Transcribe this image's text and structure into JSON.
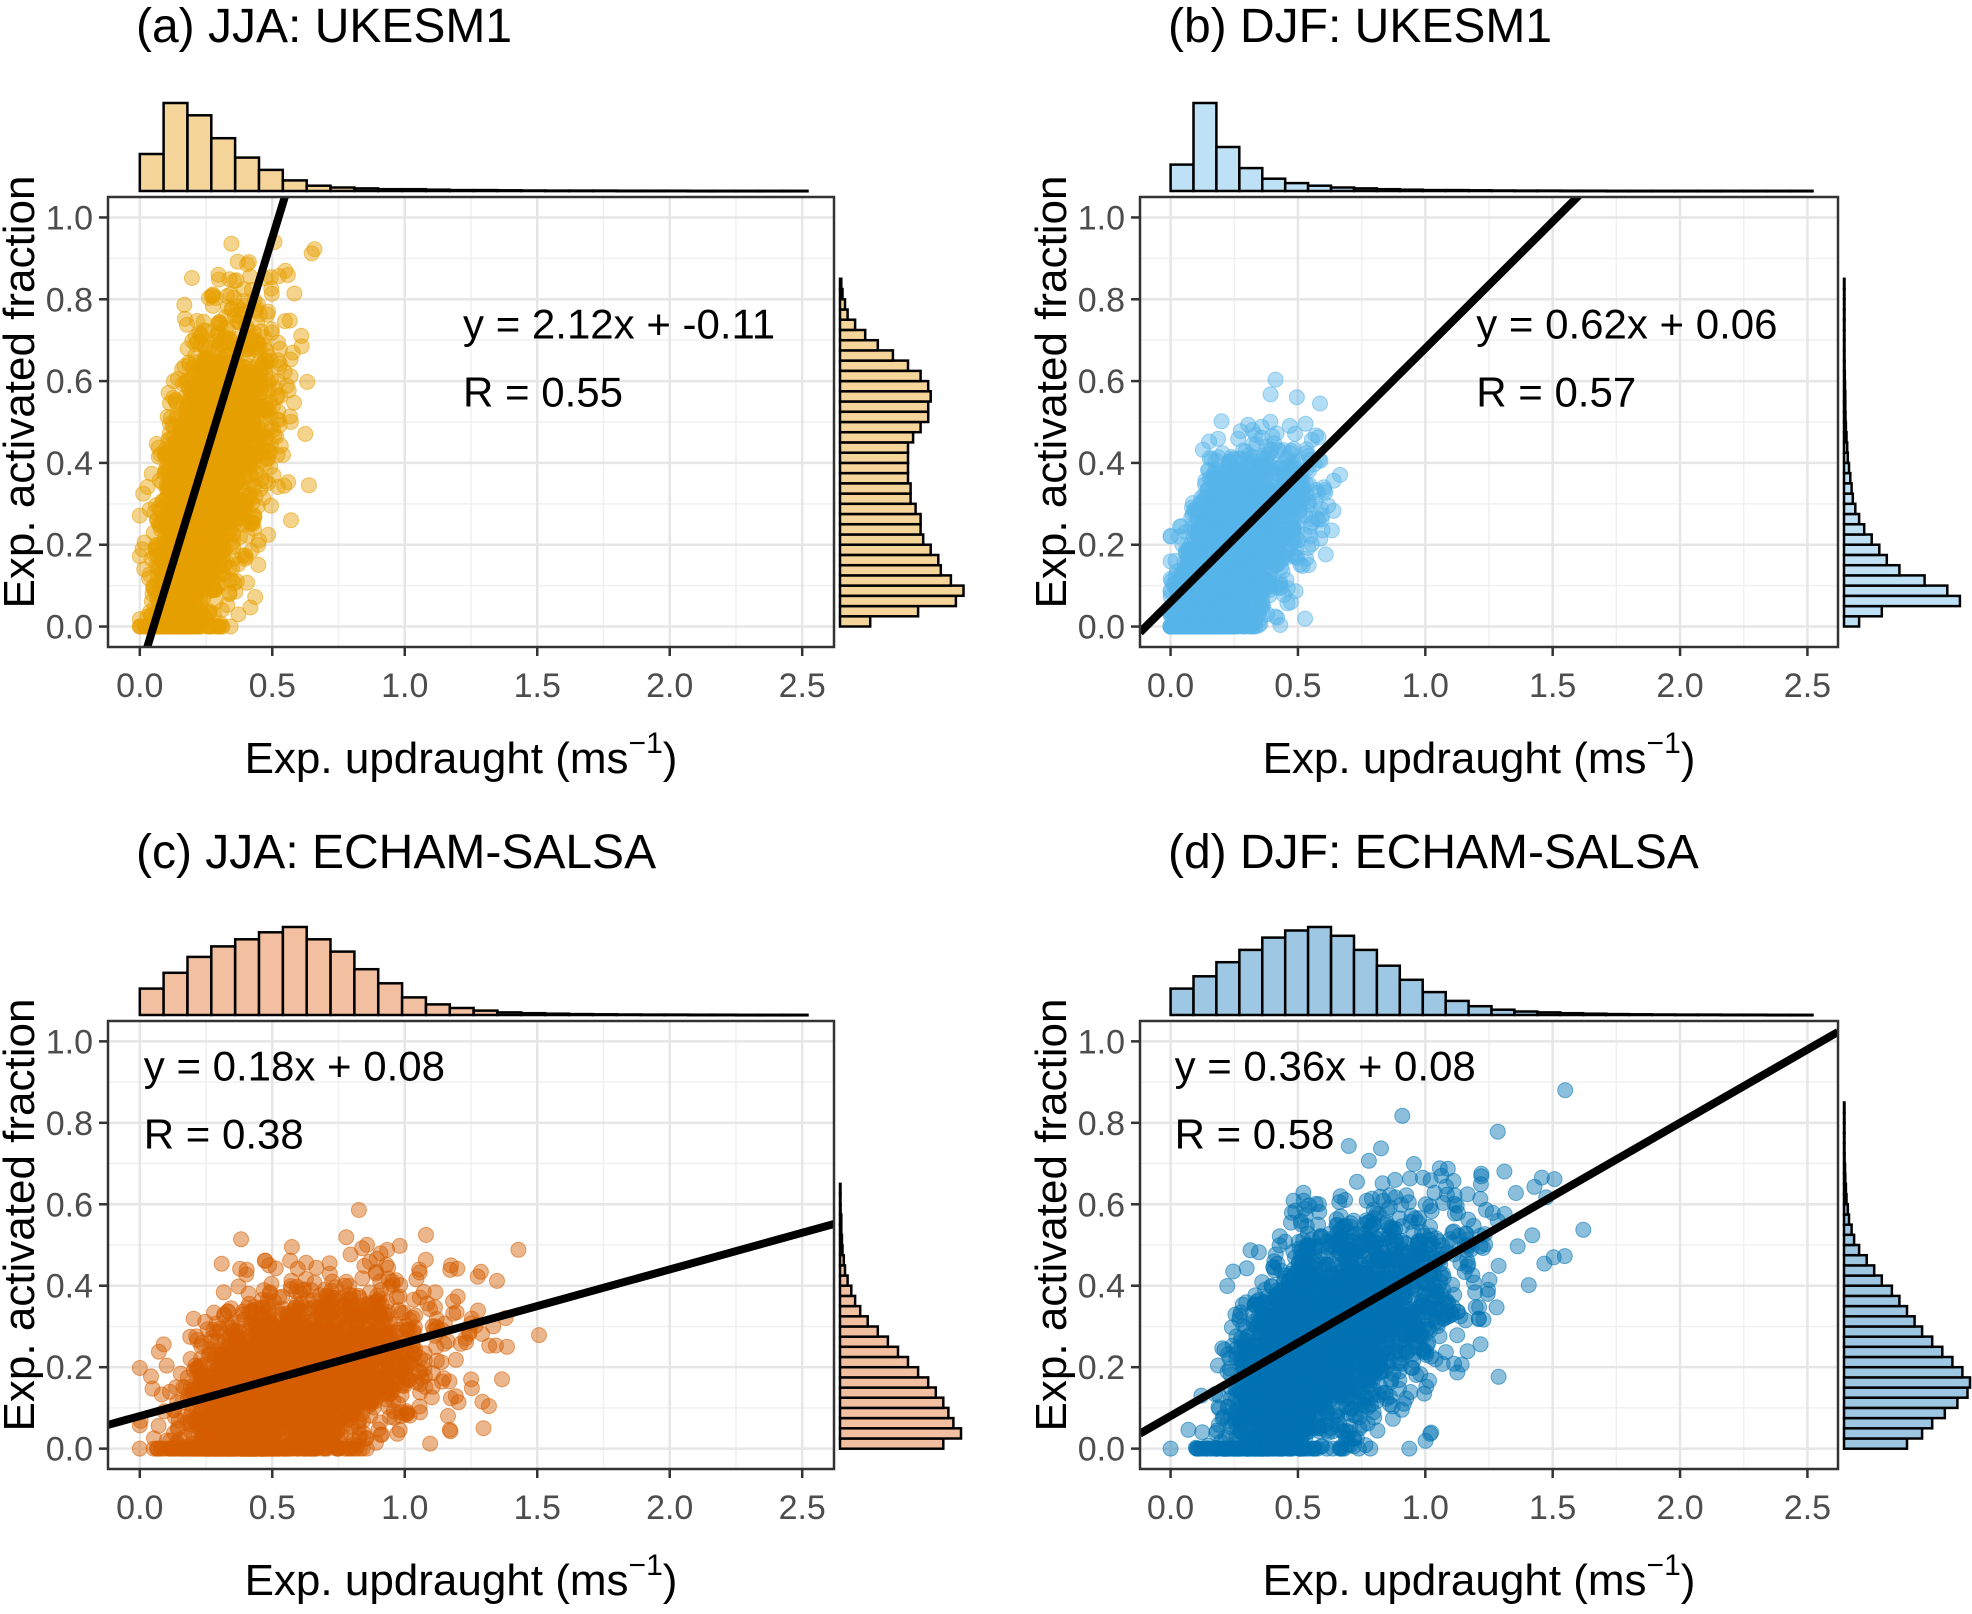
{
  "chart_data": [
    {
      "type": "scatter",
      "title": "(a) JJA: UKESM1",
      "xlabel": "Exp. updraught (ms",
      "xlabel_sup": "−1",
      "xlabel_close": ")",
      "ylabel": "Exp. activated fraction",
      "xlim": [
        -0.12,
        2.62
      ],
      "ylim": [
        -0.05,
        1.05
      ],
      "x_ticks": [
        0.0,
        0.5,
        1.0,
        1.5,
        2.0,
        2.5
      ],
      "x_tick_labels": [
        "0.0",
        "0.5",
        "1.0",
        "1.5",
        "2.0",
        "2.5"
      ],
      "y_ticks": [
        0.0,
        0.2,
        0.4,
        0.6,
        0.8,
        1.0
      ],
      "y_tick_labels": [
        "0.0",
        "0.2",
        "0.4",
        "0.6",
        "0.8",
        "1.0"
      ],
      "grid": true,
      "point_color": "#E69F00",
      "hist_color": "#F5D59A",
      "fit": {
        "slope": 2.12,
        "intercept": -0.11
      },
      "annotation_lines": [
        "y = 2.12x + -0.11",
        "R = 0.55"
      ],
      "annotation_pos": [
        1.22,
        0.675
      ],
      "points": {
        "center": [
          0.22,
          0.34
        ],
        "spread": [
          0.14,
          0.2
        ],
        "corr": 0.55,
        "xrange": [
          0.0,
          1.36
        ],
        "yrange": [
          0.0,
          0.94
        ],
        "n": 2600
      },
      "top_hist": {
        "bin_width": 0.09,
        "start": 0.0,
        "counts": [
          0.42,
          1.0,
          0.86,
          0.6,
          0.38,
          0.24,
          0.12,
          0.06,
          0.04,
          0.03,
          0.02,
          0.02,
          0.015,
          0.01,
          0.01,
          0.008,
          0.006,
          0.005,
          0.004,
          0.004,
          0.003,
          0.003,
          0.003,
          0.002,
          0.002,
          0.002,
          0.002,
          0.002
        ]
      },
      "right_hist": {
        "bin_width": 0.025,
        "start": 0.0,
        "counts": [
          0.24,
          0.62,
          0.92,
          0.98,
          0.88,
          0.8,
          0.78,
          0.72,
          0.66,
          0.64,
          0.64,
          0.6,
          0.56,
          0.56,
          0.54,
          0.54,
          0.54,
          0.54,
          0.58,
          0.64,
          0.7,
          0.7,
          0.72,
          0.7,
          0.64,
          0.54,
          0.42,
          0.3,
          0.2,
          0.12,
          0.06,
          0.04,
          0.02,
          0.01
        ]
      }
    },
    {
      "type": "scatter",
      "title": "(b) DJF: UKESM1",
      "xlabel": "Exp. updraught (ms",
      "xlabel_sup": "−1",
      "xlabel_close": ")",
      "ylabel": "Exp. activated fraction",
      "xlim": [
        -0.12,
        2.62
      ],
      "ylim": [
        -0.05,
        1.05
      ],
      "x_ticks": [
        0.0,
        0.5,
        1.0,
        1.5,
        2.0,
        2.5
      ],
      "x_tick_labels": [
        "0.0",
        "0.5",
        "1.0",
        "1.5",
        "2.0",
        "2.5"
      ],
      "y_ticks": [
        0.0,
        0.2,
        0.4,
        0.6,
        0.8,
        1.0
      ],
      "y_tick_labels": [
        "0.0",
        "0.2",
        "0.4",
        "0.6",
        "0.8",
        "1.0"
      ],
      "grid": true,
      "point_color": "#56B4E9",
      "hist_color": "#BFE1F6",
      "fit": {
        "slope": 0.62,
        "intercept": 0.06
      },
      "annotation_lines": [
        "y = 0.62x + 0.06",
        "R = 0.57"
      ],
      "annotation_pos": [
        1.2,
        0.675
      ],
      "points": {
        "center": [
          0.2,
          0.16
        ],
        "spread": [
          0.16,
          0.13
        ],
        "corr": 0.57,
        "xrange": [
          0.0,
          1.2
        ],
        "yrange": [
          0.0,
          0.85
        ],
        "n": 2400
      },
      "top_hist": {
        "bin_width": 0.09,
        "start": 0.0,
        "counts": [
          0.3,
          1.0,
          0.5,
          0.26,
          0.14,
          0.09,
          0.06,
          0.04,
          0.03,
          0.02,
          0.015,
          0.01,
          0.01,
          0.008,
          0.006,
          0.005,
          0.004,
          0.003,
          0.003,
          0.002,
          0.002,
          0.002,
          0.002,
          0.002,
          0.002,
          0.002,
          0.002,
          0.002
        ]
      },
      "right_hist": {
        "bin_width": 0.025,
        "start": 0.0,
        "counts": [
          0.12,
          0.3,
          0.92,
          0.82,
          0.64,
          0.44,
          0.34,
          0.28,
          0.22,
          0.16,
          0.12,
          0.09,
          0.07,
          0.06,
          0.05,
          0.04,
          0.03,
          0.025,
          0.02,
          0.015,
          0.012,
          0.01,
          0.01,
          0.008,
          0.006,
          0.005,
          0.004,
          0.003,
          0.002,
          0.002,
          0.002,
          0.001,
          0.001,
          0.001
        ]
      }
    },
    {
      "type": "scatter",
      "title": "(c) JJA: ECHAM-SALSA",
      "xlabel": "Exp. updraught (ms",
      "xlabel_sup": "−1",
      "xlabel_close": ")",
      "ylabel": "Exp. activated fraction",
      "xlim": [
        -0.12,
        2.62
      ],
      "ylim": [
        -0.05,
        1.05
      ],
      "x_ticks": [
        0.0,
        0.5,
        1.0,
        1.5,
        2.0,
        2.5
      ],
      "x_tick_labels": [
        "0.0",
        "0.5",
        "1.0",
        "1.5",
        "2.0",
        "2.5"
      ],
      "y_ticks": [
        0.0,
        0.2,
        0.4,
        0.6,
        0.8,
        1.0
      ],
      "y_tick_labels": [
        "0.0",
        "0.2",
        "0.4",
        "0.6",
        "0.8",
        "1.0"
      ],
      "grid": true,
      "point_color": "#D55E00",
      "hist_color": "#F2C0A0",
      "fit": {
        "slope": 0.18,
        "intercept": 0.08
      },
      "annotation_lines": [
        "y = 0.18x + 0.08",
        "R = 0.38"
      ],
      "annotation_pos": [
        0.0,
        0.875
      ],
      "points": {
        "center": [
          0.5,
          0.15
        ],
        "spread": [
          0.3,
          0.12
        ],
        "corr": 0.38,
        "xrange": [
          0.0,
          2.48
        ],
        "yrange": [
          0.0,
          0.62
        ],
        "n": 2800
      },
      "top_hist": {
        "bin_width": 0.09,
        "start": 0.0,
        "counts": [
          0.3,
          0.48,
          0.66,
          0.78,
          0.86,
          0.94,
          1.0,
          0.86,
          0.72,
          0.52,
          0.36,
          0.2,
          0.12,
          0.08,
          0.05,
          0.03,
          0.02,
          0.015,
          0.01,
          0.008,
          0.006,
          0.005,
          0.004,
          0.003,
          0.003,
          0.002,
          0.002,
          0.002
        ]
      },
      "right_hist": {
        "bin_width": 0.025,
        "start": 0.0,
        "counts": [
          0.82,
          0.96,
          0.9,
          0.86,
          0.82,
          0.76,
          0.7,
          0.62,
          0.54,
          0.46,
          0.38,
          0.3,
          0.22,
          0.16,
          0.12,
          0.09,
          0.06,
          0.04,
          0.03,
          0.02,
          0.015,
          0.01,
          0.01,
          0.005,
          0.003,
          0.002
        ]
      }
    },
    {
      "type": "scatter",
      "title": "(d) DJF: ECHAM-SALSA",
      "xlabel": "Exp. updraught (ms",
      "xlabel_sup": "−1",
      "xlabel_close": ")",
      "ylabel": "Exp. activated fraction",
      "xlim": [
        -0.12,
        2.62
      ],
      "ylim": [
        -0.05,
        1.05
      ],
      "x_ticks": [
        0.0,
        0.5,
        1.0,
        1.5,
        2.0,
        2.5
      ],
      "x_tick_labels": [
        "0.0",
        "0.5",
        "1.0",
        "1.5",
        "2.0",
        "2.5"
      ],
      "y_ticks": [
        0.0,
        0.2,
        0.4,
        0.6,
        0.8,
        1.0
      ],
      "y_tick_labels": [
        "0.0",
        "0.2",
        "0.4",
        "0.6",
        "0.8",
        "1.0"
      ],
      "grid": true,
      "point_color": "#0072B2",
      "hist_color": "#9DC7E2",
      "fit": {
        "slope": 0.36,
        "intercept": 0.08
      },
      "annotation_lines": [
        "y = 0.36x + 0.08",
        "R = 0.58"
      ],
      "annotation_pos": [
        0.0,
        0.875
      ],
      "points": {
        "center": [
          0.55,
          0.26
        ],
        "spread": [
          0.3,
          0.16
        ],
        "corr": 0.58,
        "xrange": [
          0.0,
          2.05
        ],
        "yrange": [
          0.0,
          0.88
        ],
        "n": 2800
      },
      "top_hist": {
        "bin_width": 0.09,
        "start": 0.0,
        "counts": [
          0.3,
          0.44,
          0.6,
          0.74,
          0.88,
          0.96,
          1.0,
          0.9,
          0.74,
          0.56,
          0.4,
          0.26,
          0.16,
          0.1,
          0.06,
          0.04,
          0.03,
          0.02,
          0.015,
          0.01,
          0.008,
          0.006,
          0.005,
          0.004,
          0.003,
          0.003,
          0.002,
          0.002
        ]
      },
      "right_hist": {
        "bin_width": 0.025,
        "start": 0.0,
        "counts": [
          0.5,
          0.62,
          0.7,
          0.8,
          0.9,
          0.98,
          1.0,
          0.94,
          0.86,
          0.78,
          0.7,
          0.62,
          0.56,
          0.5,
          0.44,
          0.38,
          0.3,
          0.24,
          0.18,
          0.12,
          0.08,
          0.06,
          0.04,
          0.03,
          0.02,
          0.015,
          0.01,
          0.008,
          0.005,
          0.003,
          0.002,
          0.001,
          0.001,
          0.001
        ]
      }
    }
  ]
}
